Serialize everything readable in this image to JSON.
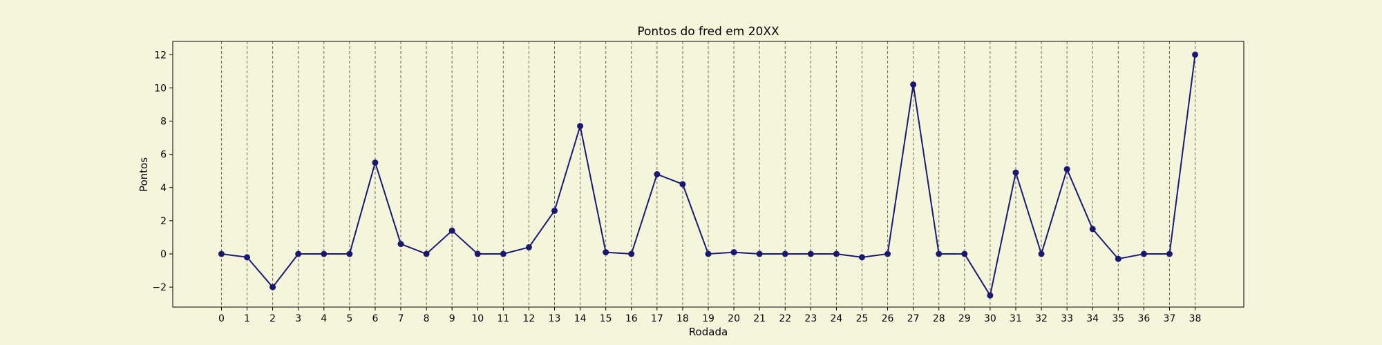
{
  "colors": {
    "background": "#f5f5dc",
    "plot_background": "#f5f5dc",
    "line": "#191970",
    "grid": "#666666"
  },
  "chart_data": {
    "type": "line",
    "title": "Pontos do fred em 20XX",
    "xlabel": "Rodada",
    "ylabel": "Pontos",
    "x": [
      0,
      1,
      2,
      3,
      4,
      5,
      6,
      7,
      8,
      9,
      10,
      11,
      12,
      13,
      14,
      15,
      16,
      17,
      18,
      19,
      20,
      21,
      22,
      23,
      24,
      25,
      26,
      27,
      28,
      29,
      30,
      31,
      32,
      33,
      34,
      35,
      36,
      37,
      38
    ],
    "values": [
      0,
      -0.2,
      -2,
      0,
      0,
      0,
      5.5,
      0.6,
      0,
      1.4,
      0,
      0,
      0.4,
      2.6,
      7.7,
      0.1,
      0,
      4.8,
      4.2,
      0,
      0.1,
      0,
      0,
      0,
      0,
      -0.2,
      0,
      10.2,
      0,
      0,
      -2.5,
      4.9,
      0,
      5.1,
      1.5,
      -0.3,
      0,
      0,
      12
    ],
    "yticks": [
      -2,
      0,
      2,
      4,
      6,
      8,
      10,
      12
    ],
    "ytick_labels": [
      "−2",
      "0",
      "2",
      "4",
      "6",
      "8",
      "10",
      "12"
    ],
    "xlim": [
      -1.9,
      39.9
    ],
    "ylim": [
      -3.2,
      12.8
    ],
    "grid": "vertical dashed lines at each x tick",
    "marker": "circle"
  }
}
